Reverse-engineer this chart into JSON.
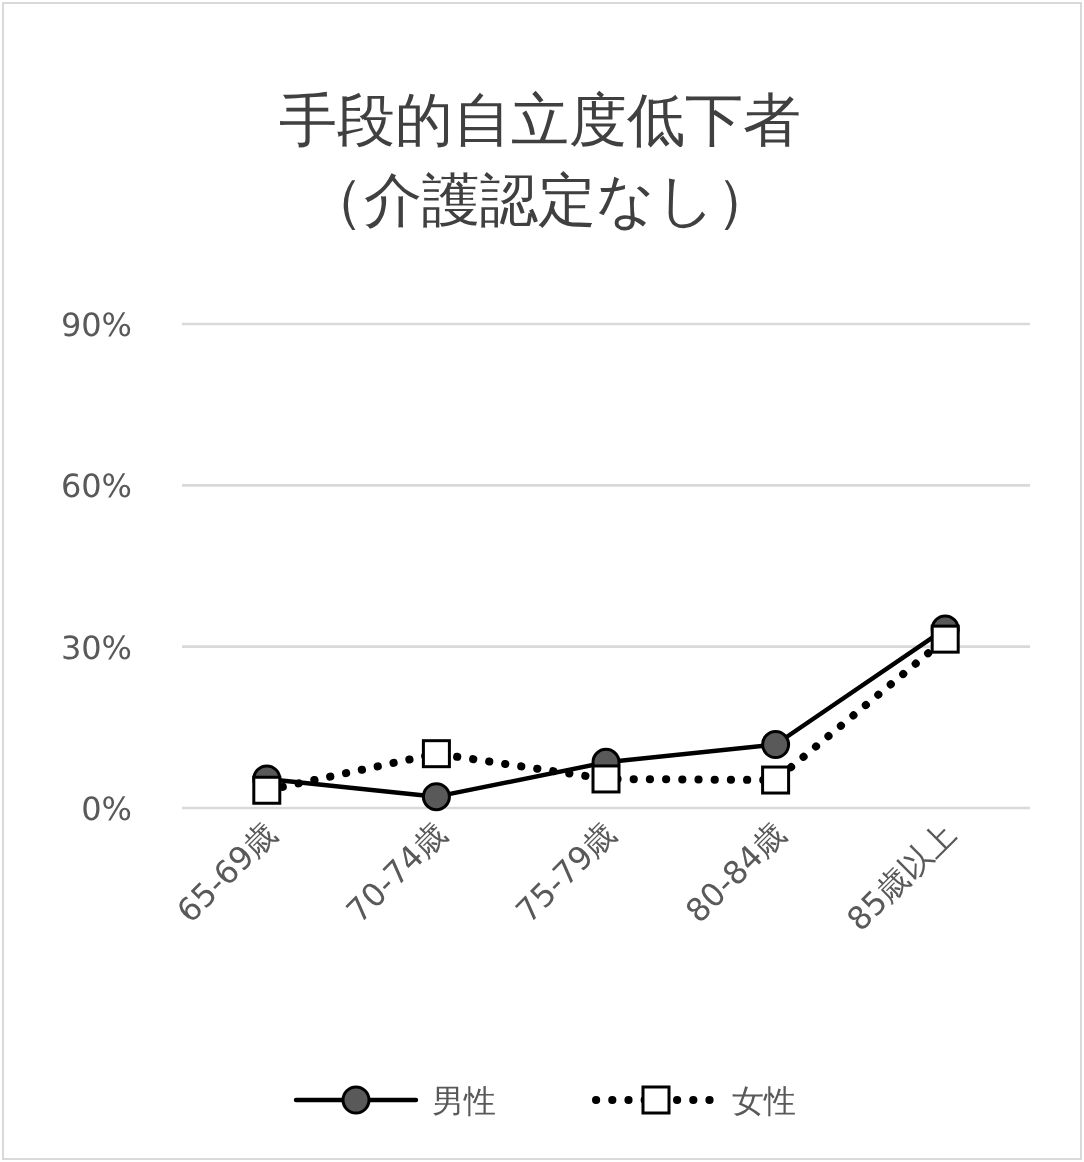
{
  "chart_data": {
    "type": "line",
    "title": "手段的自立度低下者（介護認定なし）",
    "categories": [
      "65-69歳",
      "70-74歳",
      "75-79歳",
      "80-84歳",
      "85歳以上"
    ],
    "series": [
      {
        "name": "男性",
        "color": "#000000",
        "marker": "circle",
        "line_style": "solid",
        "values": [
          5.4,
          2.1,
          8.5,
          11.8,
          33.3
        ]
      },
      {
        "name": "女性",
        "color": "#000000",
        "marker": "square",
        "line_style": "dotted",
        "values": [
          3.3,
          10.1,
          5.4,
          5.2,
          31.4
        ]
      }
    ],
    "ylim": [
      0,
      90
    ],
    "yticks": [
      {
        "value": 0,
        "label": "0%"
      },
      {
        "value": 30,
        "label": "30%"
      },
      {
        "value": 60,
        "label": "60%"
      },
      {
        "value": 90,
        "label": "90%"
      }
    ],
    "grid": "y",
    "legend": "bottom"
  }
}
